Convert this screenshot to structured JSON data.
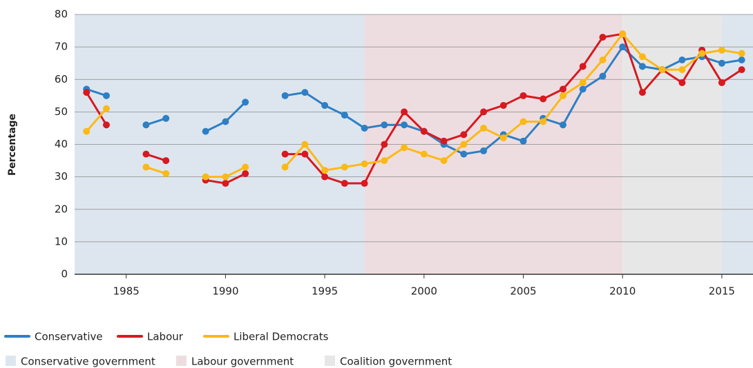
{
  "chart_data": {
    "type": "line",
    "y_label": "Percentage",
    "x": [
      1983,
      1984,
      1985,
      1986,
      1987,
      1988,
      1989,
      1990,
      1991,
      1992,
      1993,
      1994,
      1995,
      1996,
      1997,
      1998,
      1999,
      2000,
      2001,
      2002,
      2003,
      2004,
      2005,
      2006,
      2007,
      2008,
      2009,
      2010,
      2011,
      2012,
      2013,
      2014,
      2015,
      2016
    ],
    "series": [
      {
        "name": "Conservative",
        "color": "#2e7fc4",
        "values": [
          57,
          55,
          null,
          46,
          48,
          null,
          44,
          47,
          53,
          null,
          55,
          56,
          52,
          49,
          45,
          46,
          46,
          44,
          40,
          37,
          38,
          43,
          41,
          48,
          46,
          57,
          61,
          70,
          64,
          63,
          66,
          67,
          65,
          66
        ]
      },
      {
        "name": "Labour",
        "color": "#d71920",
        "values": [
          56,
          46,
          null,
          37,
          35,
          null,
          29,
          28,
          31,
          null,
          37,
          37,
          30,
          28,
          28,
          40,
          50,
          44,
          41,
          43,
          50,
          52,
          55,
          54,
          57,
          64,
          73,
          74,
          56,
          63,
          59,
          69,
          59,
          63
        ]
      },
      {
        "name": "Liberal Democrats",
        "color": "#fbb917",
        "values": [
          44,
          51,
          null,
          33,
          31,
          null,
          30,
          30,
          33,
          null,
          33,
          40,
          32,
          33,
          34,
          35,
          39,
          37,
          35,
          40,
          45,
          42,
          47,
          47,
          55,
          59,
          66,
          74,
          67,
          63,
          63,
          68,
          69,
          68
        ]
      }
    ],
    "regions": [
      {
        "name": "Conservative government",
        "color": "#dde6ef",
        "spans": [
          [
            1982.4,
            1997
          ],
          [
            2015,
            2016.57
          ]
        ]
      },
      {
        "name": "Labour government",
        "color": "#eedde0",
        "spans": [
          [
            1997,
            2010
          ]
        ]
      },
      {
        "name": "Coalition government",
        "color": "#e7e7e7",
        "spans": [
          [
            2010,
            2015
          ]
        ]
      }
    ],
    "xlim": [
      1982.4,
      2016.57
    ],
    "xticks": [
      1985,
      1990,
      1995,
      2000,
      2005,
      2010,
      2015
    ],
    "ylim": [
      0,
      80
    ],
    "yticks": [
      0,
      10,
      20,
      30,
      40,
      50,
      60,
      70,
      80
    ],
    "grid": true
  }
}
